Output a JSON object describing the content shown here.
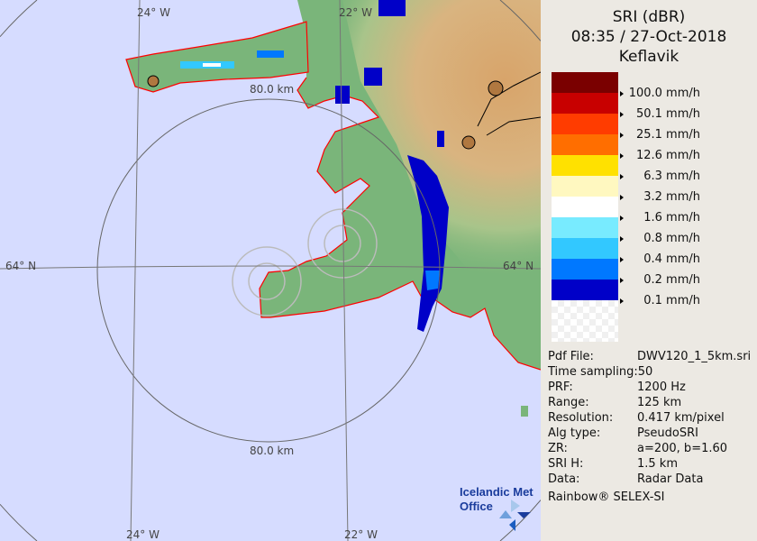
{
  "product": {
    "title": "SRI (dBR)",
    "datetime": "08:35 / 27-Oct-2018",
    "site": "Keflavik"
  },
  "legend": [
    {
      "color": "#7a0000",
      "label": "100.0 mm/h"
    },
    {
      "color": "#c80000",
      "label": "50.1 mm/h"
    },
    {
      "color": "#ff3c00",
      "label": "25.1 mm/h"
    },
    {
      "color": "#ff6e00",
      "label": "12.6 mm/h"
    },
    {
      "color": "#ffe100",
      "label": "6.3 mm/h"
    },
    {
      "color": "#fff8c0",
      "label": "3.2 mm/h"
    },
    {
      "color": "#ffffff",
      "label": "1.6 mm/h"
    },
    {
      "color": "#78ebff",
      "label": "0.8 mm/h"
    },
    {
      "color": "#32c8ff",
      "label": "0.4 mm/h"
    },
    {
      "color": "#0078ff",
      "label": "0.2 mm/h"
    },
    {
      "color": "#0000c8",
      "label": "0.1 mm/h"
    }
  ],
  "info": [
    {
      "key": "Pdf File:",
      "value": "DWV120_1_5km.sri"
    },
    {
      "key": "Time sampling:",
      "value": "50"
    },
    {
      "key": "PRF:",
      "value": "1200 Hz"
    },
    {
      "key": "Range:",
      "value": "125 km"
    },
    {
      "key": "Resolution:",
      "value": "0.417 km/pixel"
    },
    {
      "key": "Alg type:",
      "value": "PseudoSRI"
    },
    {
      "key": "ZR:",
      "value": "a=200, b=1.60"
    },
    {
      "key": "SRI H:",
      "value": "1.5 km"
    },
    {
      "key": "Data:",
      "value": "Radar Data"
    }
  ],
  "brand": "Rainbow® SELEX-SI",
  "map": {
    "lon_labels": [
      "24° W",
      "22° W",
      "24° W",
      "22° W"
    ],
    "lat_labels": [
      "64° N",
      "64° N"
    ],
    "range_labels": [
      "80.0 km",
      "80.0 km"
    ],
    "logo": "Icelandic Met Office",
    "colors": {
      "sea": "#d6dcff",
      "land": "#7ab57a",
      "coast": "#ff0000"
    }
  }
}
